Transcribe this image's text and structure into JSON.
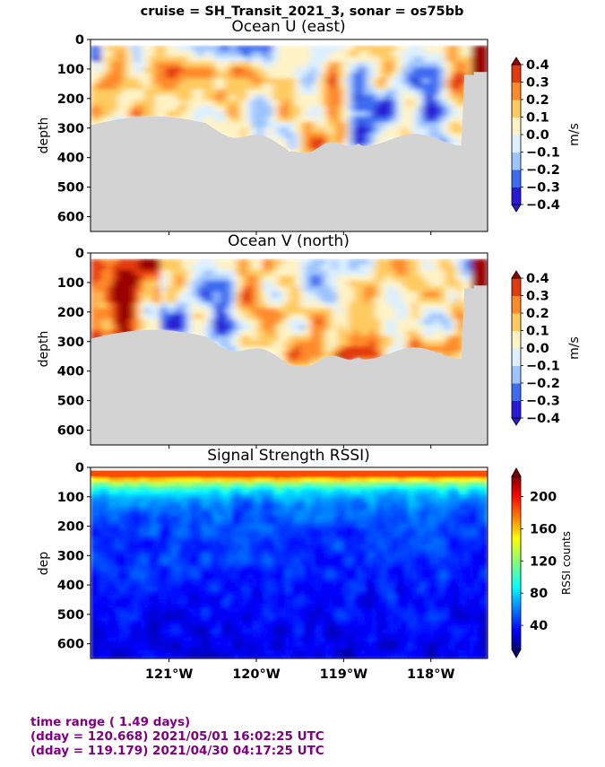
{
  "figure": {
    "suptitle": "cruise = SH_Transit_2021_3,  sonar = os75bb"
  },
  "colors": {
    "land": "#d3d3d3",
    "text_purple": "#800080"
  },
  "chart_data": [
    {
      "type": "heatmap",
      "title": "Ocean U (east)",
      "ylabel": "depth",
      "yticks": [
        "0",
        "100",
        "200",
        "300",
        "400",
        "500",
        "600"
      ],
      "ylim": [
        650,
        0
      ],
      "xticks": [],
      "xlim": [
        -121.9,
        -117.35
      ],
      "colorbar": {
        "label": "m/s",
        "ticks": [
          "0.4",
          "0.3",
          "0.2",
          "0.1",
          "0.0",
          "−0.1",
          "−0.2",
          "−0.3",
          "−0.4"
        ],
        "levels": [
          -0.4,
          -0.3,
          -0.2,
          -0.1,
          0.0,
          0.1,
          0.2,
          0.3,
          0.4
        ],
        "colors": [
          "#2a1ad6",
          "#3d6cf0",
          "#9ec4ff",
          "#dcf0ff",
          "#fff3c6",
          "#ffca60",
          "#ff8a2a",
          "#e43a10",
          "#9a0000"
        ],
        "extend": "both"
      }
    },
    {
      "type": "heatmap",
      "title": "Ocean V (north)",
      "ylabel": "depth",
      "yticks": [
        "0",
        "100",
        "200",
        "300",
        "400",
        "500",
        "600"
      ],
      "ylim": [
        650,
        0
      ],
      "xticks": [],
      "xlim": [
        -121.9,
        -117.35
      ],
      "colorbar": {
        "label": "m/s",
        "ticks": [
          "0.4",
          "0.3",
          "0.2",
          "0.1",
          "0.0",
          "−0.1",
          "−0.2",
          "−0.3",
          "−0.4"
        ],
        "levels": [
          -0.4,
          -0.3,
          -0.2,
          -0.1,
          0.0,
          0.1,
          0.2,
          0.3,
          0.4
        ],
        "colors": [
          "#2a1ad6",
          "#3d6cf0",
          "#9ec4ff",
          "#dcf0ff",
          "#fff3c6",
          "#ffca60",
          "#ff8a2a",
          "#e43a10",
          "#9a0000"
        ],
        "extend": "both"
      }
    },
    {
      "type": "heatmap",
      "title": "Signal Strength RSSI)",
      "ylabel": "dep",
      "yticks": [
        "0",
        "100",
        "200",
        "300",
        "400",
        "500",
        "600"
      ],
      "ylim": [
        650,
        0
      ],
      "xticks": [
        "121°W",
        "120°W",
        "119°W",
        "118°W"
      ],
      "xtick_values": [
        -121,
        -120,
        -119,
        -118
      ],
      "xlim": [
        -121.9,
        -117.35
      ],
      "colorbar": {
        "label": "RSSI counts",
        "ticks": [
          "200",
          "160",
          "120",
          "80",
          "40"
        ],
        "range": [
          10,
          225
        ],
        "colormap": "jet",
        "extend": "both"
      }
    }
  ],
  "footer": {
    "line1": "time range ( 1.49 days)",
    "line2": "(dday = 120.668) 2021/05/01 16:02:25 UTC",
    "line3": "(dday = 119.179) 2021/04/30 04:17:25 UTC"
  }
}
